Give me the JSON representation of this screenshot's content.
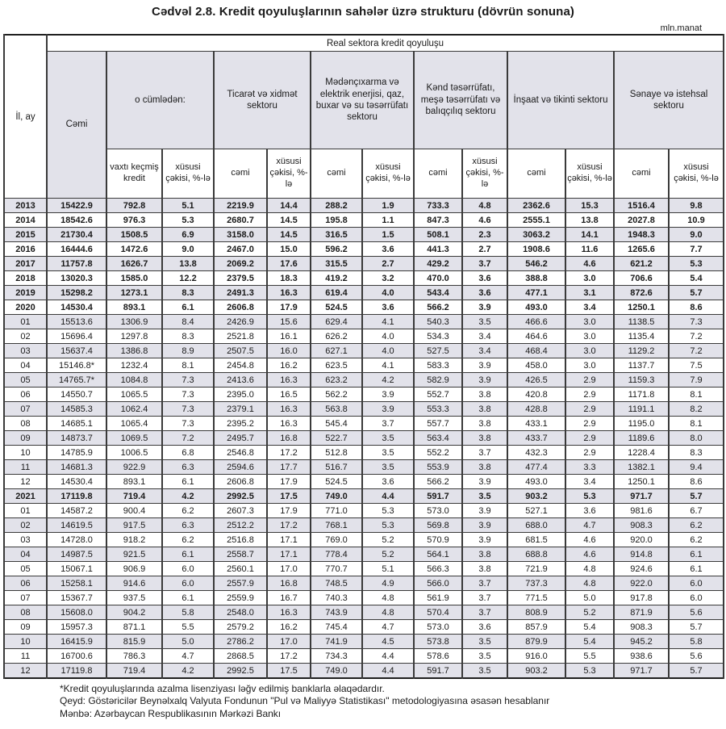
{
  "title": "Cədvəl 2.8. Kredit qoyuluşlarının sahələr üzrə strukturu (dövrün sonuna)",
  "unit": "mln.manat",
  "colors": {
    "stripe": "#e2e2ea",
    "border": "#3a3a3a",
    "text": "#1a1a1a"
  },
  "table": {
    "top_header": "Real sektora kredit qoyuluşu",
    "col_il_ay": "İl, ay",
    "col_cemi": "Cəmi",
    "groups": [
      {
        "label": "o cümlədən:",
        "sub": [
          "vaxtı keçmiş kredit",
          "xüsusi çəkisi, %-lə"
        ]
      },
      {
        "label": "Ticarət və xidmət sektoru",
        "sub": [
          "cəmi",
          "xüsusi çəkisi, %-lə"
        ]
      },
      {
        "label": "Mədənçıxarma və elektrik enerjisi, qaz, buxar və su təsərrüfatı sektoru",
        "sub": [
          "cəmi",
          "xüsusi çəkisi, %-lə"
        ]
      },
      {
        "label": "Kənd təsərrüfatı, meşə təsərrüfatı və balıqçılıq sektoru",
        "sub": [
          "cəmi",
          "xüsusi çəkisi, %-lə"
        ]
      },
      {
        "label": "İnşaat və tikinti sektoru",
        "sub": [
          "cəmi",
          "xüsusi çəkisi, %-lə"
        ]
      },
      {
        "label": "Sənaye və istehsal sektoru",
        "sub": [
          "cəmi",
          "xüsusi çəkisi, %-lə"
        ]
      }
    ],
    "rows": [
      {
        "label": "2013",
        "bold": true,
        "values": [
          "15422.9",
          "792.8",
          "5.1",
          "2219.9",
          "14.4",
          "288.2",
          "1.9",
          "733.3",
          "4.8",
          "2362.6",
          "15.3",
          "1516.4",
          "9.8"
        ]
      },
      {
        "label": "2014",
        "bold": true,
        "values": [
          "18542.6",
          "976.3",
          "5.3",
          "2680.7",
          "14.5",
          "195.8",
          "1.1",
          "847.3",
          "4.6",
          "2555.1",
          "13.8",
          "2027.8",
          "10.9"
        ]
      },
      {
        "label": "2015",
        "bold": true,
        "values": [
          "21730.4",
          "1508.5",
          "6.9",
          "3158.0",
          "14.5",
          "316.5",
          "1.5",
          "508.1",
          "2.3",
          "3063.2",
          "14.1",
          "1948.3",
          "9.0"
        ]
      },
      {
        "label": "2016",
        "bold": true,
        "values": [
          "16444.6",
          "1472.6",
          "9.0",
          "2467.0",
          "15.0",
          "596.2",
          "3.6",
          "441.3",
          "2.7",
          "1908.6",
          "11.6",
          "1265.6",
          "7.7"
        ]
      },
      {
        "label": "2017",
        "bold": true,
        "values": [
          "11757.8",
          "1626.7",
          "13.8",
          "2069.2",
          "17.6",
          "315.5",
          "2.7",
          "429.2",
          "3.7",
          "546.2",
          "4.6",
          "621.2",
          "5.3"
        ]
      },
      {
        "label": "2018",
        "bold": true,
        "values": [
          "13020.3",
          "1585.0",
          "12.2",
          "2379.5",
          "18.3",
          "419.2",
          "3.2",
          "470.0",
          "3.6",
          "388.8",
          "3.0",
          "706.6",
          "5.4"
        ]
      },
      {
        "label": "2019",
        "bold": true,
        "values": [
          "15298.2",
          "1273.1",
          "8.3",
          "2491.3",
          "16.3",
          "619.4",
          "4.0",
          "543.4",
          "3.6",
          "477.1",
          "3.1",
          "872.6",
          "5.7"
        ]
      },
      {
        "label": "2020",
        "bold": true,
        "values": [
          "14530.4",
          "893.1",
          "6.1",
          "2606.8",
          "17.9",
          "524.5",
          "3.6",
          "566.2",
          "3.9",
          "493.0",
          "3.4",
          "1250.1",
          "8.6"
        ]
      },
      {
        "label": "01",
        "bold": false,
        "values": [
          "15513.6",
          "1306.9",
          "8.4",
          "2426.9",
          "15.6",
          "629.4",
          "4.1",
          "540.3",
          "3.5",
          "466.6",
          "3.0",
          "1138.5",
          "7.3"
        ]
      },
      {
        "label": "02",
        "bold": false,
        "values": [
          "15696.4",
          "1297.8",
          "8.3",
          "2521.8",
          "16.1",
          "626.2",
          "4.0",
          "534.3",
          "3.4",
          "464.6",
          "3.0",
          "1135.4",
          "7.2"
        ]
      },
      {
        "label": "03",
        "bold": false,
        "values": [
          "15637.4",
          "1386.8",
          "8.9",
          "2507.5",
          "16.0",
          "627.1",
          "4.0",
          "527.5",
          "3.4",
          "468.4",
          "3.0",
          "1129.2",
          "7.2"
        ]
      },
      {
        "label": "04",
        "bold": false,
        "values": [
          "15146.8*",
          "1232.4",
          "8.1",
          "2454.8",
          "16.2",
          "623.5",
          "4.1",
          "583.3",
          "3.9",
          "458.0",
          "3.0",
          "1137.7",
          "7.5"
        ]
      },
      {
        "label": "05",
        "bold": false,
        "values": [
          "14765.7*",
          "1084.8",
          "7.3",
          "2413.6",
          "16.3",
          "623.2",
          "4.2",
          "582.9",
          "3.9",
          "426.5",
          "2.9",
          "1159.3",
          "7.9"
        ]
      },
      {
        "label": "06",
        "bold": false,
        "values": [
          "14550.7",
          "1065.5",
          "7.3",
          "2395.0",
          "16.5",
          "562.2",
          "3.9",
          "552.7",
          "3.8",
          "420.8",
          "2.9",
          "1171.8",
          "8.1"
        ]
      },
      {
        "label": "07",
        "bold": false,
        "values": [
          "14585.3",
          "1062.4",
          "7.3",
          "2379.1",
          "16.3",
          "563.8",
          "3.9",
          "553.3",
          "3.8",
          "428.8",
          "2.9",
          "1191.1",
          "8.2"
        ]
      },
      {
        "label": "08",
        "bold": false,
        "values": [
          "14685.1",
          "1065.4",
          "7.3",
          "2395.2",
          "16.3",
          "545.4",
          "3.7",
          "557.7",
          "3.8",
          "433.1",
          "2.9",
          "1195.0",
          "8.1"
        ]
      },
      {
        "label": "09",
        "bold": false,
        "values": [
          "14873.7",
          "1069.5",
          "7.2",
          "2495.7",
          "16.8",
          "522.7",
          "3.5",
          "563.4",
          "3.8",
          "433.7",
          "2.9",
          "1189.6",
          "8.0"
        ]
      },
      {
        "label": "10",
        "bold": false,
        "values": [
          "14785.9",
          "1006.5",
          "6.8",
          "2546.8",
          "17.2",
          "512.8",
          "3.5",
          "552.2",
          "3.7",
          "432.3",
          "2.9",
          "1228.4",
          "8.3"
        ]
      },
      {
        "label": "11",
        "bold": false,
        "values": [
          "14681.3",
          "922.9",
          "6.3",
          "2594.6",
          "17.7",
          "516.7",
          "3.5",
          "553.9",
          "3.8",
          "477.4",
          "3.3",
          "1382.1",
          "9.4"
        ]
      },
      {
        "label": "12",
        "bold": false,
        "values": [
          "14530.4",
          "893.1",
          "6.1",
          "2606.8",
          "17.9",
          "524.5",
          "3.6",
          "566.2",
          "3.9",
          "493.0",
          "3.4",
          "1250.1",
          "8.6"
        ]
      },
      {
        "label": "2021",
        "bold": true,
        "values": [
          "17119.8",
          "719.4",
          "4.2",
          "2992.5",
          "17.5",
          "749.0",
          "4.4",
          "591.7",
          "3.5",
          "903.2",
          "5.3",
          "971.7",
          "5.7"
        ]
      },
      {
        "label": "01",
        "bold": false,
        "values": [
          "14587.2",
          "900.4",
          "6.2",
          "2607.3",
          "17.9",
          "771.0",
          "5.3",
          "573.0",
          "3.9",
          "527.1",
          "3.6",
          "981.6",
          "6.7"
        ]
      },
      {
        "label": "02",
        "bold": false,
        "values": [
          "14619.5",
          "917.5",
          "6.3",
          "2512.2",
          "17.2",
          "768.1",
          "5.3",
          "569.8",
          "3.9",
          "688.0",
          "4.7",
          "908.3",
          "6.2"
        ]
      },
      {
        "label": "03",
        "bold": false,
        "values": [
          "14728.0",
          "918.2",
          "6.2",
          "2516.8",
          "17.1",
          "769.0",
          "5.2",
          "570.9",
          "3.9",
          "681.5",
          "4.6",
          "920.0",
          "6.2"
        ]
      },
      {
        "label": "04",
        "bold": false,
        "values": [
          "14987.5",
          "921.5",
          "6.1",
          "2558.7",
          "17.1",
          "778.4",
          "5.2",
          "564.1",
          "3.8",
          "688.8",
          "4.6",
          "914.8",
          "6.1"
        ]
      },
      {
        "label": "05",
        "bold": false,
        "values": [
          "15067.1",
          "906.9",
          "6.0",
          "2560.1",
          "17.0",
          "770.7",
          "5.1",
          "566.3",
          "3.8",
          "721.9",
          "4.8",
          "924.6",
          "6.1"
        ]
      },
      {
        "label": "06",
        "bold": false,
        "values": [
          "15258.1",
          "914.6",
          "6.0",
          "2557.9",
          "16.8",
          "748.5",
          "4.9",
          "566.0",
          "3.7",
          "737.3",
          "4.8",
          "922.0",
          "6.0"
        ]
      },
      {
        "label": "07",
        "bold": false,
        "values": [
          "15367.7",
          "937.5",
          "6.1",
          "2559.9",
          "16.7",
          "740.3",
          "4.8",
          "561.9",
          "3.7",
          "771.5",
          "5.0",
          "917.8",
          "6.0"
        ]
      },
      {
        "label": "08",
        "bold": false,
        "values": [
          "15608.0",
          "904.2",
          "5.8",
          "2548.0",
          "16.3",
          "743.9",
          "4.8",
          "570.4",
          "3.7",
          "808.9",
          "5.2",
          "871.9",
          "5.6"
        ]
      },
      {
        "label": "09",
        "bold": false,
        "values": [
          "15957.3",
          "871.1",
          "5.5",
          "2579.2",
          "16.2",
          "745.4",
          "4.7",
          "573.0",
          "3.6",
          "857.9",
          "5.4",
          "908.3",
          "5.7"
        ]
      },
      {
        "label": "10",
        "bold": false,
        "values": [
          "16415.9",
          "815.9",
          "5.0",
          "2786.2",
          "17.0",
          "741.9",
          "4.5",
          "573.8",
          "3.5",
          "879.9",
          "5.4",
          "945.2",
          "5.8"
        ]
      },
      {
        "label": "11",
        "bold": false,
        "values": [
          "16700.6",
          "786.3",
          "4.7",
          "2868.5",
          "17.2",
          "734.3",
          "4.4",
          "578.6",
          "3.5",
          "916.0",
          "5.5",
          "938.6",
          "5.6"
        ]
      },
      {
        "label": "12",
        "bold": false,
        "values": [
          "17119.8",
          "719.4",
          "4.2",
          "2992.5",
          "17.5",
          "749.0",
          "4.4",
          "591.7",
          "3.5",
          "903.2",
          "5.3",
          "971.7",
          "5.7"
        ]
      }
    ]
  },
  "footnotes": [
    "*Kredit qoyuluşlarında azalma lisenziyası ləğv edilmiş banklarla əlaqədardır.",
    "Qeyd: Göstəricilər Beynəlxalq Valyuta Fondunun \"Pul və Maliyyə Statistikası\" metodologiyasına əsasən hesablanır",
    "Mənbə: Azərbaycan Respublikasının Mərkəzi Bankı"
  ]
}
